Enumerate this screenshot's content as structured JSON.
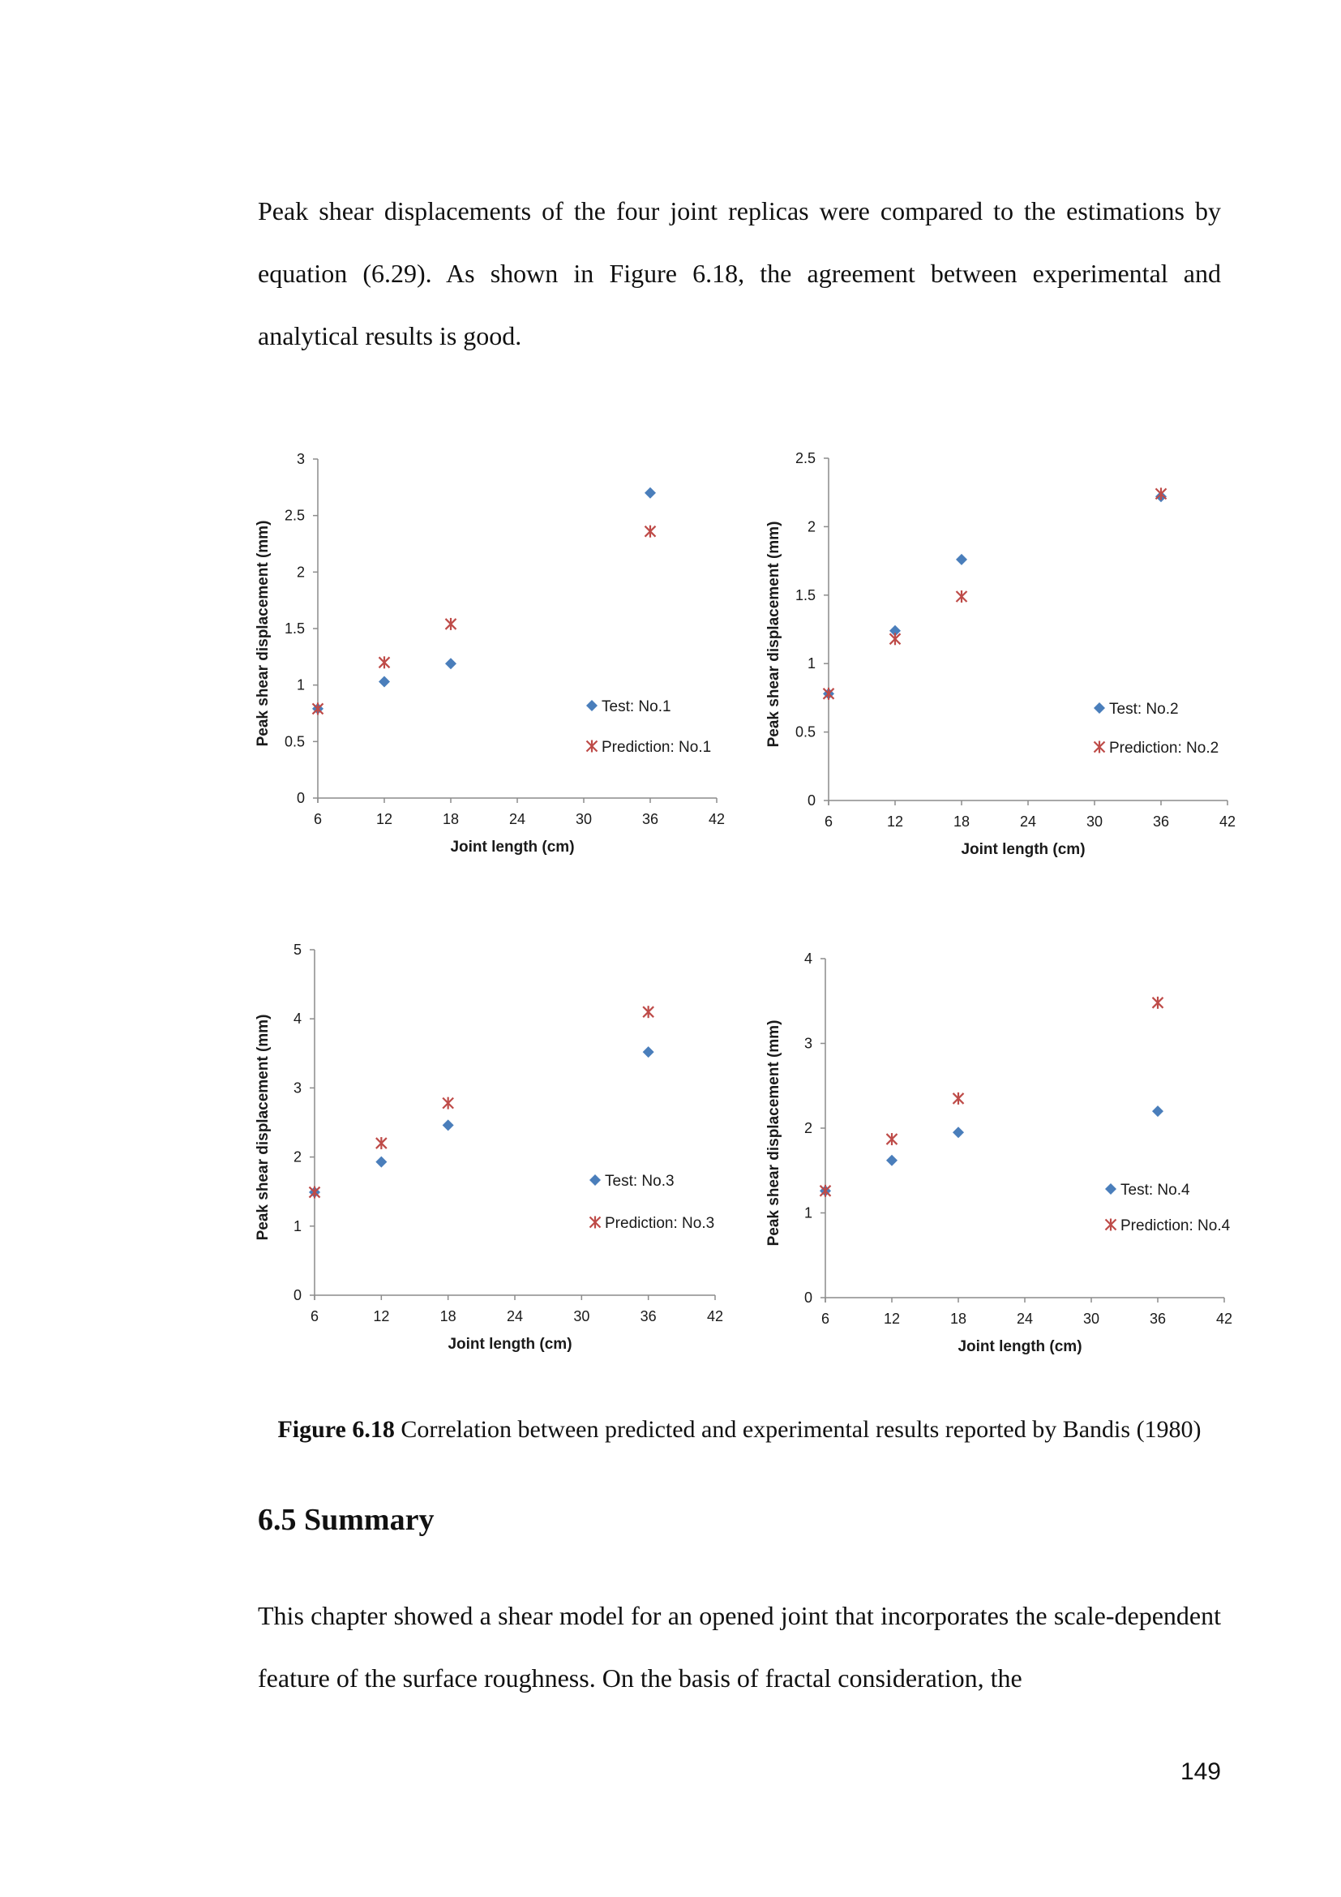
{
  "text": {
    "paragraph1": "Peak shear displacements of the four joint replicas were compared to the estimations by equation (6.29). As shown in Figure 6.18, the agreement between experimental and analytical results is good.",
    "caption_label": "Figure 6.18",
    "caption_text": " Correlation between predicted and experimental results reported by Bandis (1980)",
    "section_heading": "6.5 Summary",
    "paragraph2": "This chapter showed a shear model for an opened joint that incorporates the scale-dependent feature of the surface roughness. On the basis of fractal consideration, the",
    "page_number": "149"
  },
  "colors": {
    "test": "#4a7ebb",
    "prediction": "#be4b48",
    "axis": "#8c8c8c"
  },
  "chart_data": [
    {
      "type": "scatter",
      "xlabel": "Joint length (cm)",
      "ylabel": "Peak shear displacement (mm)",
      "xlim": [
        6,
        42
      ],
      "xticks": [
        6,
        12,
        18,
        24,
        30,
        36,
        42
      ],
      "ylim": [
        0,
        3
      ],
      "yticks": [
        0,
        0.5,
        1,
        1.5,
        2,
        2.5,
        3
      ],
      "legend_position": "right",
      "series": [
        {
          "name": "Test: No.1",
          "marker": "diamond",
          "x": [
            6,
            12,
            18,
            36
          ],
          "y": [
            0.79,
            1.03,
            1.19,
            2.7
          ]
        },
        {
          "name": "Prediction: No.1",
          "marker": "star",
          "x": [
            6,
            12,
            18,
            36
          ],
          "y": [
            0.79,
            1.2,
            1.54,
            2.36
          ]
        }
      ]
    },
    {
      "type": "scatter",
      "xlabel": "Joint length (cm)",
      "ylabel": "Peak shear displacement (mm)",
      "xlim": [
        6,
        42
      ],
      "xticks": [
        6,
        12,
        18,
        24,
        30,
        36,
        42
      ],
      "ylim": [
        0,
        2.5
      ],
      "yticks": [
        0,
        0.5,
        1,
        1.5,
        2,
        2.5
      ],
      "legend_position": "right",
      "series": [
        {
          "name": "Test: No.2",
          "marker": "diamond",
          "x": [
            6,
            12,
            18,
            36
          ],
          "y": [
            0.78,
            1.24,
            1.76,
            2.22
          ]
        },
        {
          "name": "Prediction: No.2",
          "marker": "star",
          "x": [
            6,
            12,
            18,
            36
          ],
          "y": [
            0.78,
            1.18,
            1.49,
            2.24
          ]
        }
      ]
    },
    {
      "type": "scatter",
      "xlabel": "Joint length (cm)",
      "ylabel": "Peak shear displacement (mm)",
      "xlim": [
        6,
        42
      ],
      "xticks": [
        6,
        12,
        18,
        24,
        30,
        36,
        42
      ],
      "ylim": [
        0,
        5
      ],
      "yticks": [
        0,
        1,
        2,
        3,
        4,
        5
      ],
      "legend_position": "right",
      "series": [
        {
          "name": "Test: No.3",
          "marker": "diamond",
          "x": [
            6,
            12,
            18,
            36
          ],
          "y": [
            1.49,
            1.93,
            2.46,
            3.52
          ]
        },
        {
          "name": "Prediction: No.3",
          "marker": "star",
          "x": [
            6,
            12,
            18,
            36
          ],
          "y": [
            1.49,
            2.2,
            2.78,
            4.1
          ]
        }
      ]
    },
    {
      "type": "scatter",
      "xlabel": "Joint length (cm)",
      "ylabel": "Peak shear displacement (mm)",
      "xlim": [
        6,
        42
      ],
      "xticks": [
        6,
        12,
        18,
        24,
        30,
        36,
        42
      ],
      "ylim": [
        0,
        4
      ],
      "yticks": [
        0,
        1,
        2,
        3,
        4
      ],
      "legend_position": "right",
      "series": [
        {
          "name": "Test: No.4",
          "marker": "diamond",
          "x": [
            6,
            12,
            18,
            36
          ],
          "y": [
            1.26,
            1.62,
            1.95,
            2.2
          ]
        },
        {
          "name": "Prediction: No.4",
          "marker": "star",
          "x": [
            6,
            12,
            18,
            36
          ],
          "y": [
            1.26,
            1.87,
            2.35,
            3.48
          ]
        }
      ]
    }
  ]
}
